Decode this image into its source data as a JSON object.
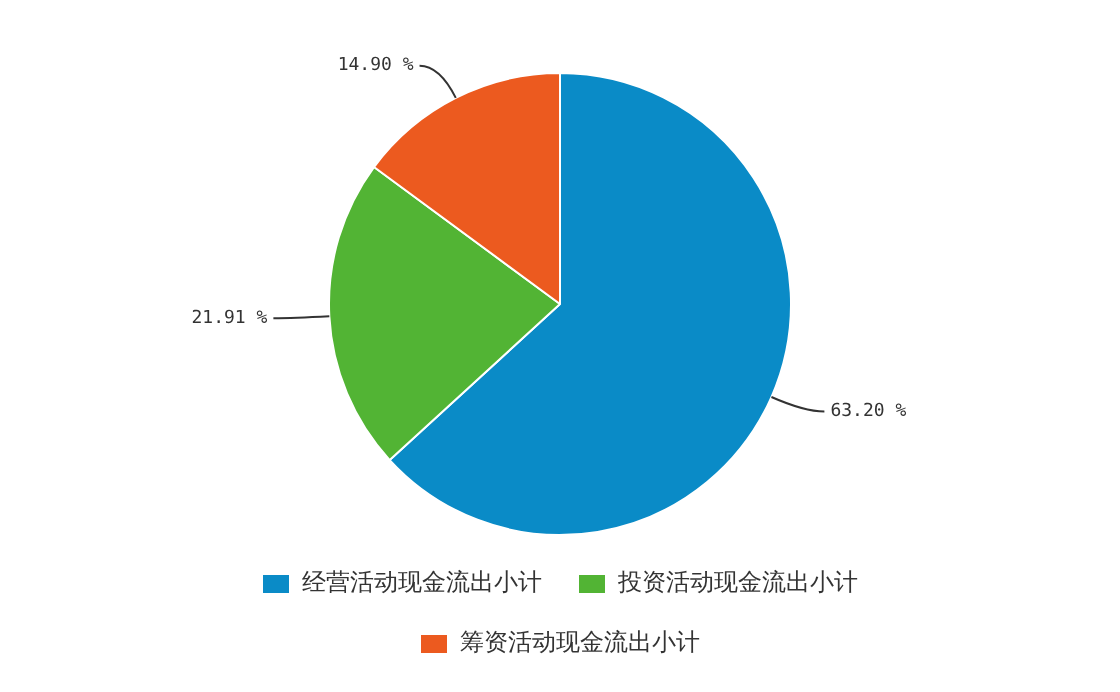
{
  "chart_data": {
    "type": "pie",
    "categories": [
      "经营活动现金流出小计",
      "投资活动现金流出小计",
      "筹资活动现金流出小计"
    ],
    "values": [
      63.2,
      21.91,
      14.9
    ],
    "value_labels": [
      "63.20 %",
      "21.91 %",
      "14.90 %"
    ],
    "colors": [
      "#0a8bc7",
      "#52b434",
      "#ec5a1f"
    ],
    "legend": "bottom"
  }
}
